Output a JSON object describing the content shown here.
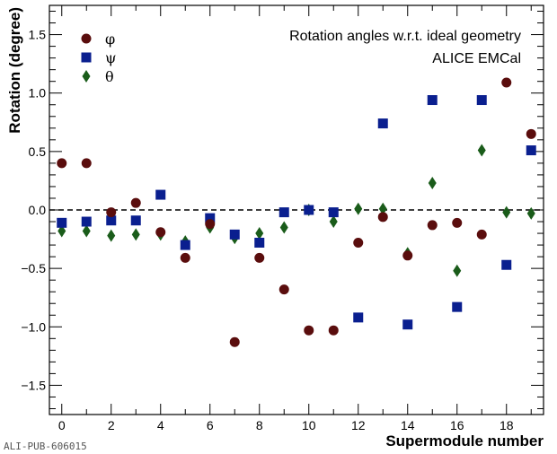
{
  "chart_data": {
    "type": "scatter",
    "xlabel": "Supermodule number",
    "ylabel": "Rotation (degree)",
    "xlim": [
      -0.5,
      19.5
    ],
    "ylim": [
      -1.75,
      1.75
    ],
    "xticks": [
      0,
      2,
      4,
      6,
      8,
      10,
      12,
      14,
      16,
      18
    ],
    "yticks": [
      -1.5,
      -1.0,
      -0.5,
      0.0,
      0.5,
      1.0,
      1.5
    ],
    "reference_line": 0.0,
    "legend_position": "top-left",
    "annotations": [
      "Rotation angles w.r.t. ideal geometry",
      "ALICE EMCal"
    ],
    "x": [
      0,
      1,
      2,
      3,
      4,
      5,
      6,
      7,
      8,
      9,
      10,
      11,
      12,
      13,
      14,
      15,
      16,
      17,
      18,
      19
    ],
    "series": [
      {
        "name": "φ",
        "marker": "circle",
        "color": "#5a0d0d",
        "values": [
          0.4,
          0.4,
          -0.02,
          0.06,
          -0.19,
          -0.41,
          -0.12,
          -1.13,
          -0.41,
          -0.68,
          -1.03,
          -1.03,
          -0.28,
          -0.06,
          -0.39,
          -0.13,
          -0.11,
          -0.21,
          1.09,
          0.65
        ]
      },
      {
        "name": "ψ",
        "marker": "square",
        "color": "#0a1f8f",
        "values": [
          -0.11,
          -0.1,
          -0.09,
          -0.09,
          0.13,
          -0.3,
          -0.07,
          -0.21,
          -0.28,
          -0.02,
          0.0,
          -0.02,
          -0.92,
          0.74,
          -0.98,
          0.94,
          -0.83,
          0.94,
          -0.47,
          0.51
        ]
      },
      {
        "name": "θ",
        "marker": "diamond",
        "color": "#1a5c1a",
        "values": [
          -0.18,
          -0.18,
          -0.22,
          -0.21,
          -0.21,
          -0.27,
          -0.15,
          -0.24,
          -0.2,
          -0.15,
          0.0,
          -0.1,
          0.01,
          0.01,
          -0.37,
          0.23,
          -0.52,
          0.51,
          -0.02,
          -0.03
        ]
      }
    ]
  },
  "watermark": "ALI-PUB-606015"
}
